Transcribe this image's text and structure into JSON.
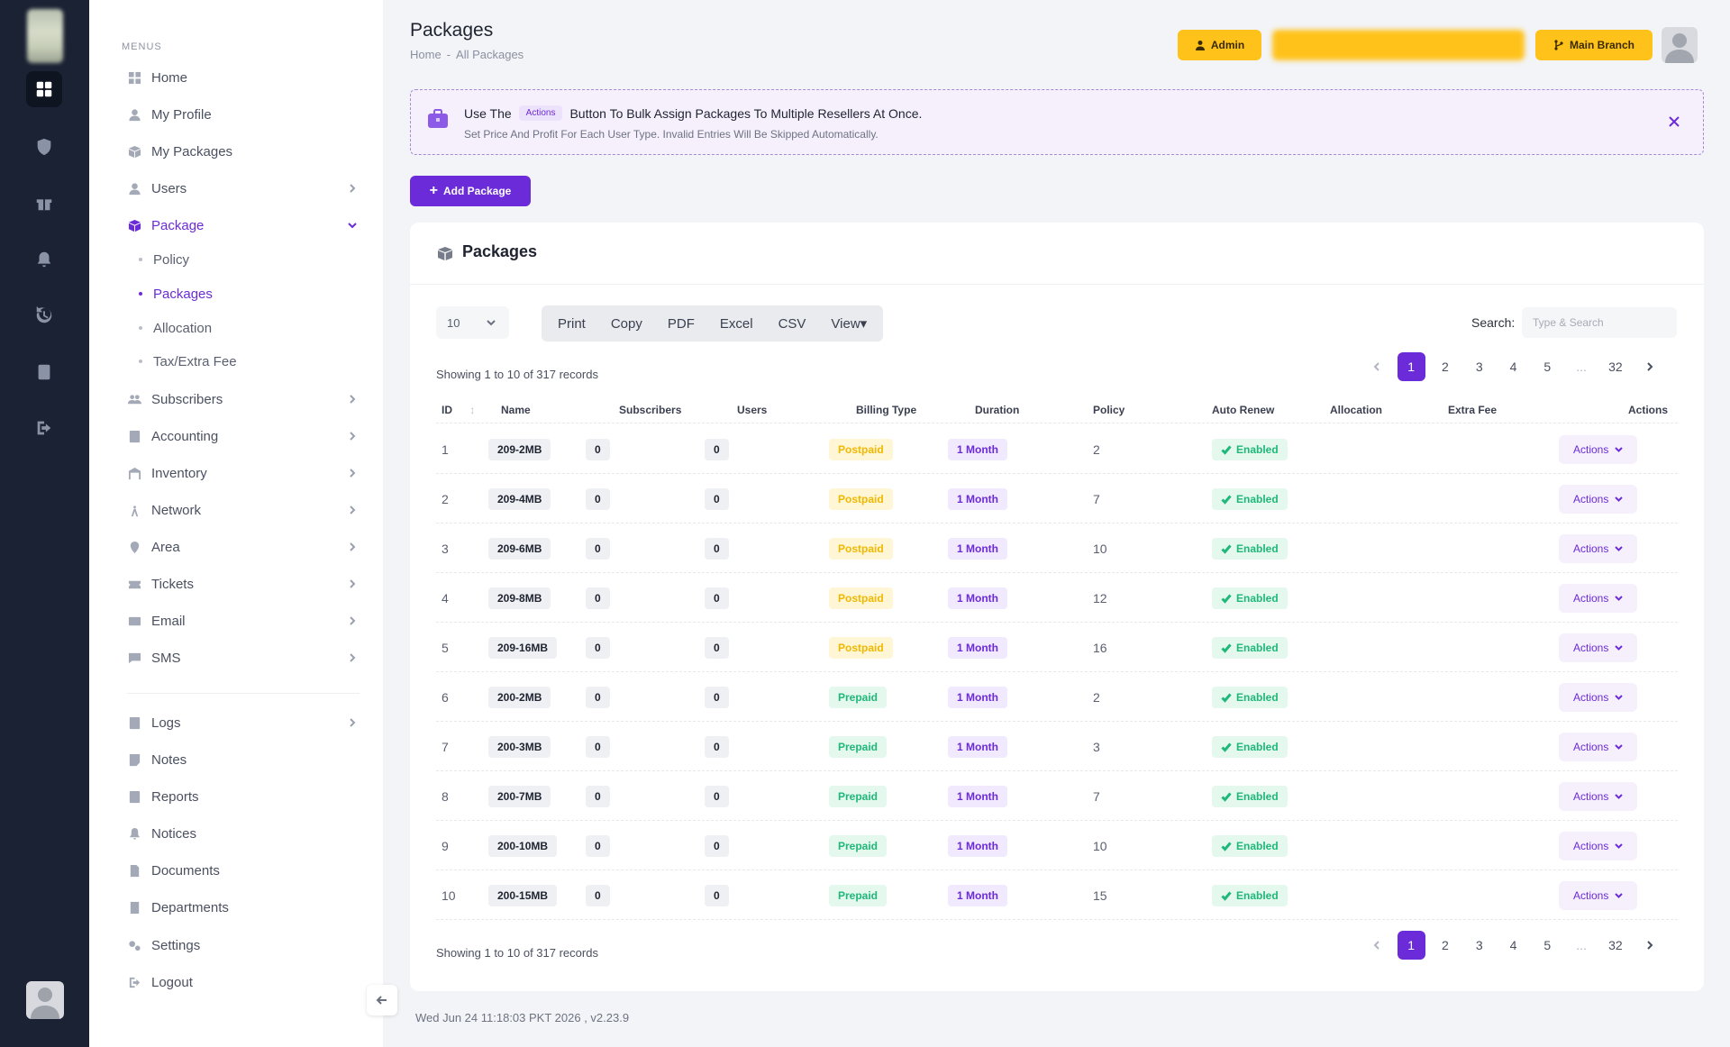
{
  "sidebar": {
    "menus_title": "MENUS",
    "items": [
      {
        "label": "Home",
        "icon": "dashboard-icon"
      },
      {
        "label": "My Profile",
        "icon": "user-icon"
      },
      {
        "label": "My Packages",
        "icon": "box-icon"
      },
      {
        "label": "Users",
        "icon": "user-icon"
      },
      {
        "label": "Package",
        "icon": "box-icon"
      },
      {
        "label": "Subscribers",
        "icon": "users-icon"
      },
      {
        "label": "Accounting",
        "icon": "calculator-icon"
      },
      {
        "label": "Inventory",
        "icon": "warehouse-icon"
      },
      {
        "label": "Network",
        "icon": "antenna-icon"
      },
      {
        "label": "Area",
        "icon": "map-pin-icon"
      },
      {
        "label": "Tickets",
        "icon": "ticket-icon"
      },
      {
        "label": "Email",
        "icon": "mail-icon"
      },
      {
        "label": "SMS",
        "icon": "message-icon"
      },
      {
        "label": "Logs",
        "icon": "log-icon"
      },
      {
        "label": "Notes",
        "icon": "note-icon"
      },
      {
        "label": "Reports",
        "icon": "report-icon"
      },
      {
        "label": "Notices",
        "icon": "bell-icon"
      },
      {
        "label": "Documents",
        "icon": "document-icon"
      },
      {
        "label": "Departments",
        "icon": "building-icon"
      },
      {
        "label": "Settings",
        "icon": "gear-icon"
      },
      {
        "label": "Logout",
        "icon": "logout-icon"
      }
    ],
    "package_sub": [
      "Policy",
      "Packages",
      "Allocation",
      "Tax/Extra Fee"
    ]
  },
  "header": {
    "title": "Packages",
    "breadcrumb": [
      "Home",
      "-",
      "All Packages"
    ],
    "admin_label": "Admin",
    "branch_label": "Main Branch"
  },
  "banner": {
    "line1_pre": "Use The",
    "line1_pill": "Actions",
    "line1_post": "Button To Bulk Assign Packages To Multiple Resellers At Once.",
    "line2": "Set Price And Profit For Each User Type. Invalid Entries Will Be Skipped Automatically."
  },
  "add_button": "Add Package",
  "card": {
    "title": "Packages",
    "page_length": "10",
    "exports": [
      "Print",
      "Copy",
      "PDF",
      "Excel",
      "CSV",
      "View"
    ],
    "search_label": "Search:",
    "search_placeholder": "Type & Search",
    "showing": "Showing 1 to 10 of 317 records",
    "pages": [
      "1",
      "2",
      "3",
      "4",
      "5",
      "...",
      "32"
    ],
    "columns": [
      "ID",
      "Name",
      "Subscribers",
      "Users",
      "Billing Type",
      "Duration",
      "Policy",
      "Auto Renew",
      "Allocation",
      "Extra Fee",
      "Actions"
    ],
    "rows": [
      {
        "id": "1",
        "name": "209-2MB",
        "subs": "0",
        "users": "0",
        "billing": "Postpaid",
        "duration": "1 Month",
        "policy": "2",
        "renew": "Enabled",
        "action": "Actions"
      },
      {
        "id": "2",
        "name": "209-4MB",
        "subs": "0",
        "users": "0",
        "billing": "Postpaid",
        "duration": "1 Month",
        "policy": "7",
        "renew": "Enabled",
        "action": "Actions"
      },
      {
        "id": "3",
        "name": "209-6MB",
        "subs": "0",
        "users": "0",
        "billing": "Postpaid",
        "duration": "1 Month",
        "policy": "10",
        "renew": "Enabled",
        "action": "Actions"
      },
      {
        "id": "4",
        "name": "209-8MB",
        "subs": "0",
        "users": "0",
        "billing": "Postpaid",
        "duration": "1 Month",
        "policy": "12",
        "renew": "Enabled",
        "action": "Actions"
      },
      {
        "id": "5",
        "name": "209-16MB",
        "subs": "0",
        "users": "0",
        "billing": "Postpaid",
        "duration": "1 Month",
        "policy": "16",
        "renew": "Enabled",
        "action": "Actions"
      },
      {
        "id": "6",
        "name": "200-2MB",
        "subs": "0",
        "users": "0",
        "billing": "Prepaid",
        "duration": "1 Month",
        "policy": "2",
        "renew": "Enabled",
        "action": "Actions"
      },
      {
        "id": "7",
        "name": "200-3MB",
        "subs": "0",
        "users": "0",
        "billing": "Prepaid",
        "duration": "1 Month",
        "policy": "3",
        "renew": "Enabled",
        "action": "Actions"
      },
      {
        "id": "8",
        "name": "200-7MB",
        "subs": "0",
        "users": "0",
        "billing": "Prepaid",
        "duration": "1 Month",
        "policy": "7",
        "renew": "Enabled",
        "action": "Actions"
      },
      {
        "id": "9",
        "name": "200-10MB",
        "subs": "0",
        "users": "0",
        "billing": "Prepaid",
        "duration": "1 Month",
        "policy": "10",
        "renew": "Enabled",
        "action": "Actions"
      },
      {
        "id": "10",
        "name": "200-15MB",
        "subs": "0",
        "users": "0",
        "billing": "Prepaid",
        "duration": "1 Month",
        "policy": "15",
        "renew": "Enabled",
        "action": "Actions"
      }
    ]
  },
  "footer": "Wed Jun 24 11:18:03 PKT 2026 ,   v2.23.9",
  "colors": {
    "accent": "#6c2bd9",
    "yellow": "#ffc21a",
    "rail": "#1b2234",
    "prepaid": "#1fb878",
    "postpaid": "#f0b800"
  }
}
